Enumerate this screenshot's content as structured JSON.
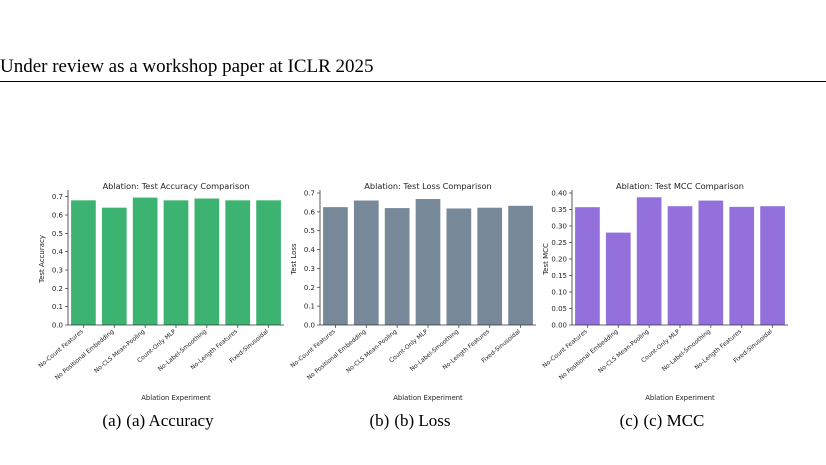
{
  "header": {
    "text": "Under review as a workshop paper at ICLR 2025"
  },
  "chart_data": [
    {
      "type": "bar",
      "title": "Ablation: Test Accuracy Comparison",
      "xlabel": "Ablation Experiment",
      "ylabel": "Test Accuracy",
      "categories": [
        "No-Count Features",
        "No Positional Embedding",
        "No-CLS Mean-Pooling",
        "Count-Only MLP",
        "No-Label-Smoothing",
        "No-Length Features",
        "Fixed-Sinusoidal"
      ],
      "values": [
        0.68,
        0.64,
        0.695,
        0.68,
        0.69,
        0.68,
        0.68
      ],
      "ylim": [
        0,
        0.72
      ],
      "yticks": [
        0.0,
        0.1,
        0.2,
        0.3,
        0.4,
        0.5,
        0.6,
        0.7
      ],
      "yticklabels": [
        "0.0",
        "0.1",
        "0.2",
        "0.3",
        "0.4",
        "0.5",
        "0.6",
        "0.7"
      ],
      "color": "#3cb371",
      "grid": false
    },
    {
      "type": "bar",
      "title": "Ablation: Test Loss Comparison",
      "xlabel": "Ablation Experiment",
      "ylabel": "Test Loss",
      "categories": [
        "No-Count Features",
        "No Positional Embedding",
        "No-CLS Mean-Pooling",
        "Count-Only MLP",
        "No-Label-Smoothing",
        "No-Length Features",
        "Fixed-Sinusoidal"
      ],
      "values": [
        0.625,
        0.66,
        0.62,
        0.668,
        0.618,
        0.622,
        0.632
      ],
      "ylim": [
        0,
        0.7
      ],
      "yticks": [
        0.0,
        0.1,
        0.2,
        0.3,
        0.4,
        0.5,
        0.6,
        0.7
      ],
      "yticklabels": [
        "0.0",
        "0.1",
        "0.2",
        "0.3",
        "0.4",
        "0.5",
        "0.6",
        "0.7"
      ],
      "color": "#778899",
      "grid": false
    },
    {
      "type": "bar",
      "title": "Ablation: Test MCC Comparison",
      "xlabel": "Ablation Experiment",
      "ylabel": "Test MCC",
      "categories": [
        "No-Count Features",
        "No Positional Embedding",
        "No-CLS Mean-Pooling",
        "Count-Only MLP",
        "No-Label-Smoothing",
        "No-Length Features",
        "Fixed-Sinusoidal"
      ],
      "values": [
        0.357,
        0.28,
        0.387,
        0.36,
        0.377,
        0.358,
        0.36
      ],
      "ylim": [
        0,
        0.4
      ],
      "yticks": [
        0.0,
        0.05,
        0.1,
        0.15,
        0.2,
        0.25,
        0.3,
        0.35,
        0.4
      ],
      "yticklabels": [
        "0.00",
        "0.05",
        "0.10",
        "0.15",
        "0.20",
        "0.25",
        "0.30",
        "0.35",
        "0.40"
      ],
      "color": "#9370db",
      "grid": false
    }
  ],
  "captions": [
    {
      "label": "(a)",
      "text": "(a) Accuracy"
    },
    {
      "label": "(b)",
      "text": "(b) Loss"
    },
    {
      "label": "(c)",
      "text": "(c) MCC"
    }
  ]
}
